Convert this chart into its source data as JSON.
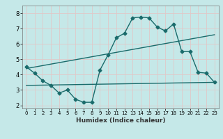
{
  "title": "",
  "xlabel": "Humidex (Indice chaleur)",
  "ylabel": "",
  "bg_color": "#c5e8e8",
  "grid_color": "#e0c8c8",
  "line_color": "#1a6b6b",
  "xlim": [
    -0.5,
    23.5
  ],
  "ylim": [
    1.8,
    8.5
  ],
  "xticks": [
    0,
    1,
    2,
    3,
    4,
    5,
    6,
    7,
    8,
    9,
    10,
    11,
    12,
    13,
    14,
    15,
    16,
    17,
    18,
    19,
    20,
    21,
    22,
    23
  ],
  "yticks": [
    2,
    3,
    4,
    5,
    6,
    7,
    8
  ],
  "series1_x": [
    0,
    1,
    2,
    3,
    4,
    5,
    6,
    7,
    8,
    9,
    10,
    11,
    12,
    13,
    14,
    15,
    16,
    17,
    18,
    19,
    20,
    21,
    22,
    23
  ],
  "series1_y": [
    4.5,
    4.1,
    3.6,
    3.3,
    2.8,
    3.0,
    2.4,
    2.2,
    2.2,
    4.3,
    5.3,
    6.4,
    6.7,
    7.7,
    7.75,
    7.7,
    7.1,
    6.85,
    7.3,
    5.5,
    5.5,
    4.15,
    4.1,
    3.5
  ],
  "series2_x": [
    0,
    23
  ],
  "series2_y": [
    3.3,
    3.5
  ],
  "series3_x": [
    0,
    23
  ],
  "series3_y": [
    4.4,
    6.6
  ],
  "marker_size": 2.5,
  "line_width": 1.0
}
